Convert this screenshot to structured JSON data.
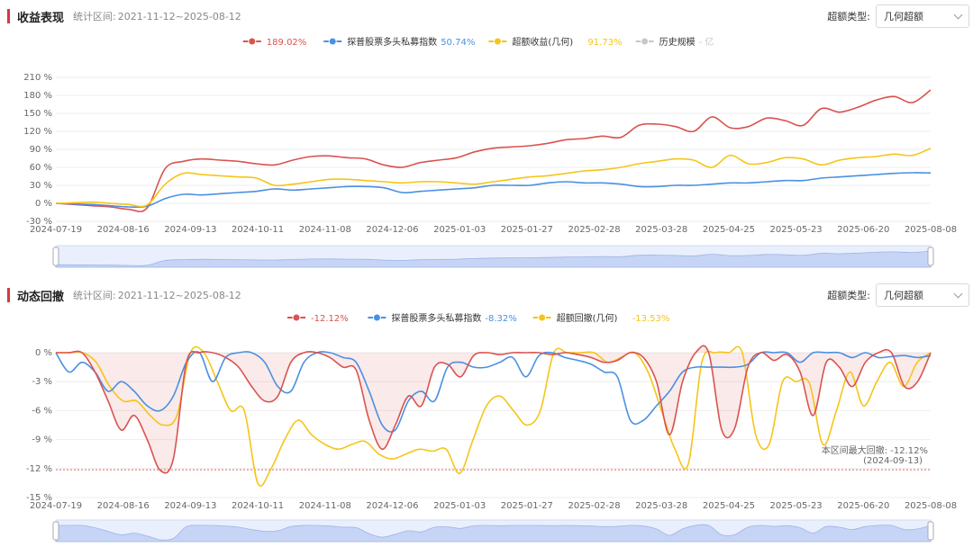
{
  "colors": {
    "fund": "#d9534f",
    "index": "#4a90e2",
    "excess": "#f5c518",
    "scale": "#c8c8c8",
    "accent": "#d9363e",
    "maxline": "#e06666"
  },
  "returns_panel": {
    "title": "收益表现",
    "period_label": "统计区间:",
    "period": "2021-11-12~2025-08-12",
    "select_label": "超额类型:",
    "select_value": "几何超额",
    "legend": [
      {
        "name": "",
        "value": "189.02%",
        "color": "#d9534f"
      },
      {
        "name": "探普股票多头私募指数",
        "value": "50.74%",
        "color": "#4a90e2"
      },
      {
        "name": "超额收益(几何)",
        "value": "91.73%",
        "color": "#f5c518"
      },
      {
        "name": "历史规模",
        "value": "- 亿",
        "color": "#c8c8c8"
      }
    ]
  },
  "drawdown_panel": {
    "title": "动态回撤",
    "period_label": "统计区间:",
    "period": "2021-11-12~2025-08-12",
    "select_label": "超额类型:",
    "select_value": "几何超额",
    "legend": [
      {
        "name": "",
        "value": "-12.12%",
        "color": "#d9534f"
      },
      {
        "name": "探普股票多头私募指数",
        "value": "-8.32%",
        "color": "#4a90e2"
      },
      {
        "name": "超额回撤(几何)",
        "value": "-13.53%",
        "color": "#f5c518"
      }
    ],
    "annotation": [
      "本区间最大回撤: -12.12%",
      "(2024-09-13)"
    ]
  },
  "chart_data": [
    {
      "type": "line",
      "title": "收益表现",
      "x_labels": [
        "2024-07-19",
        "2024-08-16",
        "2024-09-13",
        "2024-10-11",
        "2024-11-08",
        "2024-12-06",
        "2025-01-03",
        "2025-01-27",
        "2025-02-28",
        "2025-03-28",
        "2025-04-25",
        "2025-05-23",
        "2025-06-20",
        "2025-08-08"
      ],
      "y_ticks": [
        "-30 %",
        "0 %",
        "30 %",
        "60 %",
        "90 %",
        "120 %",
        "150 %",
        "180 %",
        "210 %"
      ],
      "ylim": [
        -30,
        210
      ],
      "grid": true,
      "legend_position": "top-center",
      "series": [
        {
          "name": "",
          "values": [
            0,
            -2,
            -4,
            -6,
            -10,
            -8,
            58,
            70,
            74,
            72,
            70,
            66,
            64,
            72,
            78,
            79,
            76,
            74,
            64,
            60,
            68,
            72,
            76,
            86,
            92,
            94,
            96,
            100,
            106,
            108,
            112,
            110,
            130,
            132,
            128,
            120,
            144,
            126,
            128,
            142,
            138,
            130,
            158,
            152,
            160,
            172,
            178,
            168,
            189
          ]
        },
        {
          "name": "探普股票多头私募指数",
          "values": [
            0,
            -1,
            -2,
            -4,
            -6,
            -5,
            8,
            15,
            14,
            16,
            18,
            20,
            24,
            22,
            24,
            26,
            28,
            28,
            26,
            18,
            20,
            22,
            24,
            26,
            30,
            30,
            30,
            34,
            36,
            34,
            34,
            32,
            28,
            28,
            30,
            30,
            32,
            34,
            34,
            36,
            38,
            38,
            42,
            44,
            46,
            48,
            50,
            51,
            50.7
          ]
        },
        {
          "name": "超额收益(几何)",
          "values": [
            0,
            1,
            2,
            0,
            -2,
            -3,
            32,
            50,
            48,
            46,
            44,
            42,
            30,
            32,
            36,
            40,
            40,
            38,
            36,
            34,
            36,
            36,
            34,
            32,
            36,
            40,
            44,
            46,
            50,
            54,
            56,
            60,
            66,
            70,
            74,
            72,
            60,
            80,
            66,
            68,
            76,
            74,
            64,
            72,
            76,
            78,
            82,
            80,
            91.7
          ]
        }
      ]
    },
    {
      "type": "area",
      "title": "动态回撤",
      "x_labels": [
        "2024-07-19",
        "2024-08-16",
        "2024-09-13",
        "2024-10-11",
        "2024-11-08",
        "2024-12-06",
        "2025-01-03",
        "2025-01-27",
        "2025-02-28",
        "2025-03-28",
        "2025-04-25",
        "2025-05-23",
        "2025-06-20",
        "2025-08-08"
      ],
      "y_ticks": [
        "-15 %",
        "-12 %",
        "-9 %",
        "-6 %",
        "-3 %",
        "0 %"
      ],
      "ylim": [
        -15,
        0
      ],
      "grid": true,
      "legend_position": "top-center",
      "max_drawdown_line": -12.12,
      "series": [
        {
          "name": "",
          "values": [
            0,
            0,
            0,
            -2,
            -5,
            -8,
            -6.5,
            -9,
            -12.2,
            -11,
            -1,
            0,
            0,
            -0.5,
            -1.5,
            -3.5,
            -5,
            -4.5,
            -1,
            0,
            0,
            -0.5,
            -1.5,
            -1.8,
            -7,
            -10,
            -7.5,
            -4.5,
            -5.5,
            -1.5,
            -1.2,
            -2.5,
            -0.3,
            0,
            -0.2,
            0,
            0,
            0,
            -0.2,
            0,
            -0.2,
            -0.5,
            -1,
            -0.8,
            0,
            -0.5,
            -3,
            -8.5,
            -3,
            0,
            0,
            -8,
            -7.8,
            -1.5,
            0,
            -0.8,
            -0.2,
            -2,
            -6.5,
            -1,
            -1.5,
            -3.5,
            -1,
            0,
            0,
            -3.5,
            -3,
            0
          ]
        },
        {
          "name": "探普股票多头私募指数",
          "values": [
            0,
            -2,
            -1,
            -2,
            -4,
            -3,
            -4,
            -5.5,
            -6,
            -4.5,
            -1,
            0,
            -3,
            -0.5,
            0,
            0,
            -1,
            -3.5,
            -4,
            -1,
            0,
            0,
            -0.5,
            -1,
            -4,
            -7.5,
            -8,
            -5,
            -4,
            -5,
            -1.5,
            -1,
            -1.5,
            -1.5,
            -1,
            -0.5,
            -2.5,
            -0.3,
            0,
            -0.5,
            -0.8,
            -1.2,
            -2,
            -2.5,
            -7,
            -7,
            -5.5,
            -4,
            -2,
            -1.5,
            -1.5,
            -1.5,
            -1.5,
            -1.2,
            0,
            0,
            0,
            -1,
            0,
            0,
            0,
            -0.5,
            0,
            -0.5,
            -0.4,
            -0.3,
            -0.5,
            -0.3
          ]
        },
        {
          "name": "超额回撤(几何)",
          "values": [
            0,
            0,
            0,
            -1,
            -3.5,
            -5,
            -5,
            -6.5,
            -7.5,
            -6.5,
            0,
            0,
            -3,
            -6,
            -6,
            -13.5,
            -12,
            -9,
            -7,
            -8.5,
            -9.5,
            -10,
            -9.5,
            -9.2,
            -10.5,
            -11,
            -10.5,
            -10,
            -10.2,
            -10,
            -12.5,
            -9,
            -5.5,
            -4.5,
            -6,
            -7.5,
            -6,
            0,
            0,
            0,
            0,
            -1,
            -0.5,
            0,
            -2,
            -6,
            -10,
            -11.5,
            -1,
            0,
            0,
            0,
            -8.5,
            -9.5,
            -3,
            -3,
            -3.2,
            -9.5,
            -6,
            -2,
            -5.5,
            -3,
            -1,
            -3.5,
            -1,
            0
          ]
        }
      ]
    }
  ]
}
